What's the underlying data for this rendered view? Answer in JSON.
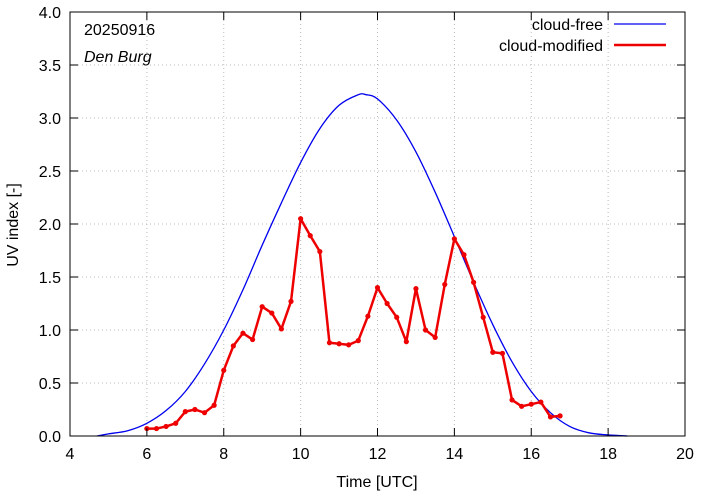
{
  "annotation": {
    "date": "20250916",
    "station": "Den Burg"
  },
  "colors": {
    "cloud_free": "#0000ee",
    "cloud_modified": "#ee0000",
    "axis": "#000000",
    "grid": "#bbbbbb"
  },
  "chart_data": {
    "type": "line",
    "title": "",
    "xlabel": "Time  [UTC]",
    "ylabel": "UV index  [-]",
    "xlim": [
      4,
      20
    ],
    "ylim": [
      0,
      4
    ],
    "xticks": [
      4,
      6,
      8,
      10,
      12,
      14,
      16,
      18,
      20
    ],
    "yticks": [
      0.0,
      0.5,
      1.0,
      1.5,
      2.0,
      2.5,
      3.0,
      3.5,
      4.0
    ],
    "grid": true,
    "legend_position": "top-right",
    "series": [
      {
        "name": "cloud-free",
        "style": "line",
        "color": "#0000ee",
        "x": [
          4.7,
          5.0,
          5.5,
          6.0,
          6.5,
          7.0,
          7.5,
          8.0,
          8.5,
          9.0,
          9.5,
          10.0,
          10.5,
          11.0,
          11.5,
          11.7,
          12.0,
          12.5,
          13.0,
          13.5,
          14.0,
          14.5,
          15.0,
          15.5,
          16.0,
          16.5,
          17.0,
          17.5,
          18.0,
          18.5
        ],
        "y": [
          0.0,
          0.02,
          0.05,
          0.12,
          0.24,
          0.42,
          0.68,
          1.0,
          1.38,
          1.8,
          2.2,
          2.58,
          2.9,
          3.12,
          3.22,
          3.22,
          3.18,
          2.98,
          2.68,
          2.3,
          1.88,
          1.45,
          1.05,
          0.7,
          0.42,
          0.22,
          0.09,
          0.03,
          0.01,
          0.0
        ]
      },
      {
        "name": "cloud-modified",
        "style": "linespoints",
        "color": "#ee0000",
        "x": [
          6.0,
          6.25,
          6.5,
          6.75,
          7.0,
          7.25,
          7.5,
          7.75,
          8.0,
          8.25,
          8.5,
          8.75,
          9.0,
          9.25,
          9.5,
          9.75,
          10.0,
          10.25,
          10.5,
          10.75,
          11.0,
          11.25,
          11.5,
          11.75,
          12.0,
          12.25,
          12.5,
          12.75,
          13.0,
          13.25,
          13.5,
          13.75,
          14.0,
          14.25,
          14.5,
          14.75,
          15.0,
          15.25,
          15.5,
          15.75,
          16.0,
          16.25,
          16.5,
          16.75
        ],
        "y": [
          0.07,
          0.07,
          0.09,
          0.12,
          0.23,
          0.25,
          0.22,
          0.29,
          0.62,
          0.85,
          0.97,
          0.91,
          1.22,
          1.16,
          1.01,
          1.27,
          2.05,
          1.89,
          1.74,
          0.88,
          0.87,
          0.86,
          0.9,
          1.13,
          1.4,
          1.25,
          1.12,
          0.89,
          1.39,
          1.0,
          0.93,
          1.43,
          1.86,
          1.71,
          1.45,
          1.12,
          0.79,
          0.78,
          0.34,
          0.28,
          0.3,
          0.32,
          0.18,
          0.19
        ]
      }
    ]
  }
}
